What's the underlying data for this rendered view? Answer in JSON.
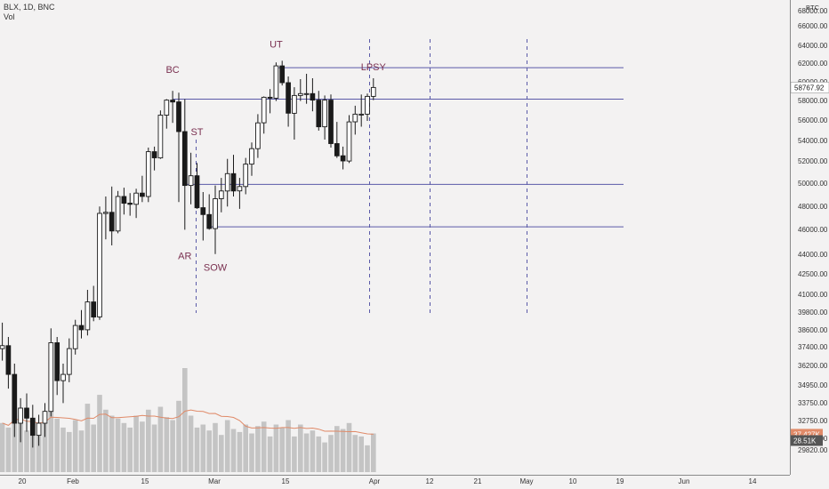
{
  "legend": {
    "symbol": "BLX, 1D, BNC",
    "volume": "Vol"
  },
  "currency_label": "BTC",
  "colors": {
    "background": "#f3f2f2",
    "candle": "#1a1a1a",
    "volume_bar": "#c4c4c4",
    "volume_ma": "#e08a68",
    "level_line": "#5a5aa8",
    "event_line": "#5a5aa8",
    "annotation": "#7a3050",
    "axis_text": "#333333",
    "price_tag": "#1a1a1a",
    "volume_tag": "#555555"
  },
  "chart_data": {
    "type": "candlestick",
    "title": "",
    "x_ticks": [
      "20",
      "Feb",
      "15",
      "Mar",
      "15",
      "Apr",
      "12",
      "21",
      "May",
      "10",
      "19",
      "Jun",
      "14"
    ],
    "y_ticks": [
      "68000.00",
      "66000.00",
      "64000.00",
      "62000.00",
      "60000.00",
      "58000.00",
      "56000.00",
      "54000.00",
      "52000.00",
      "50000.00",
      "48000.00",
      "46000.00",
      "44000.00",
      "42500.00",
      "41000.00",
      "39800.00",
      "38600.00",
      "37400.00",
      "36200.00",
      "34950.00",
      "33750.00",
      "32750.00",
      "31750.00",
      "29820.00"
    ],
    "price_scale": "log",
    "price_range": [
      29820,
      68000
    ],
    "last_price": "58767.92",
    "volume_tags": [
      "37.427K",
      "28.51K"
    ],
    "ohlc": [
      [
        36000,
        37800,
        35200,
        36200
      ],
      [
        36200,
        36800,
        33400,
        34300
      ],
      [
        34300,
        35000,
        30500,
        31300
      ],
      [
        31300,
        32800,
        30200,
        32200
      ],
      [
        32200,
        33100,
        30800,
        31600
      ],
      [
        31600,
        32400,
        29900,
        30600
      ],
      [
        30600,
        31800,
        30000,
        31300
      ],
      [
        31300,
        32500,
        30500,
        32000
      ],
      [
        32000,
        37400,
        31700,
        36400
      ],
      [
        36400,
        36800,
        33000,
        33900
      ],
      [
        33900,
        35000,
        32500,
        34300
      ],
      [
        34300,
        36700,
        33800,
        36000
      ],
      [
        36000,
        38000,
        35600,
        37600
      ],
      [
        37600,
        38700,
        36700,
        37300
      ],
      [
        37300,
        40200,
        36900,
        39300
      ],
      [
        39300,
        40500,
        37900,
        38200
      ],
      [
        38200,
        47000,
        38000,
        46400
      ],
      [
        46400,
        47900,
        44200,
        46500
      ],
      [
        46500,
        48800,
        43700,
        44900
      ],
      [
        44900,
        48400,
        44700,
        47900
      ],
      [
        47900,
        48700,
        46300,
        47300
      ],
      [
        47300,
        48200,
        46200,
        47200
      ],
      [
        47200,
        48600,
        46000,
        48200
      ],
      [
        48200,
        49800,
        47400,
        47900
      ],
      [
        47900,
        52500,
        47400,
        52100
      ],
      [
        52100,
        52600,
        50300,
        51500
      ],
      [
        51500,
        56300,
        51400,
        55800
      ],
      [
        55800,
        57500,
        54400,
        57400
      ],
      [
        57400,
        58400,
        55000,
        57200
      ],
      [
        57200,
        58200,
        47400,
        54100
      ],
      [
        54100,
        57500,
        45000,
        48900
      ],
      [
        48900,
        52000,
        47200,
        49800
      ],
      [
        49800,
        51000,
        46800,
        46900
      ],
      [
        46900,
        48300,
        44100,
        46300
      ],
      [
        46300,
        48100,
        45000,
        45100
      ],
      [
        45100,
        48900,
        43000,
        47700
      ],
      [
        47700,
        49600,
        46500,
        48400
      ],
      [
        48400,
        51400,
        47000,
        50000
      ],
      [
        50000,
        51800,
        47900,
        48400
      ],
      [
        48400,
        49600,
        46800,
        48800
      ],
      [
        48800,
        51500,
        48100,
        50900
      ],
      [
        50900,
        53000,
        49800,
        52400
      ],
      [
        52400,
        55900,
        51500,
        55000
      ],
      [
        55000,
        57800,
        53900,
        57700
      ],
      [
        57700,
        58600,
        56000,
        57600
      ],
      [
        57600,
        61600,
        57300,
        61200
      ],
      [
        61200,
        61800,
        59000,
        59300
      ],
      [
        59300,
        60000,
        54600,
        56000
      ],
      [
        56000,
        58800,
        53300,
        57900
      ],
      [
        57900,
        59700,
        57300,
        58100
      ],
      [
        58100,
        60300,
        57000,
        58100
      ],
      [
        58100,
        59800,
        56200,
        57400
      ],
      [
        57400,
        58400,
        54200,
        54600
      ],
      [
        54600,
        57900,
        53300,
        57400
      ],
      [
        57400,
        58000,
        52500,
        52900
      ],
      [
        52900,
        55100,
        51500,
        51700
      ],
      [
        51700,
        52600,
        50400,
        51200
      ],
      [
        51200,
        55800,
        51000,
        55100
      ],
      [
        55100,
        56800,
        53800,
        55900
      ],
      [
        55900,
        58000,
        54600,
        55900
      ],
      [
        55900,
        58100,
        55200,
        57800
      ],
      [
        57800,
        59800,
        57400,
        58768
      ]
    ],
    "volume": [
      33,
      30,
      42,
      38,
      28,
      33,
      26,
      40,
      62,
      36,
      30,
      27,
      35,
      28,
      46,
      32,
      52,
      42,
      38,
      36,
      33,
      30,
      38,
      34,
      42,
      32,
      44,
      37,
      35,
      48,
      70,
      38,
      30,
      32,
      28,
      33,
      25,
      35,
      29,
      27,
      32,
      26,
      31,
      34,
      24,
      32,
      30,
      35,
      24,
      32,
      26,
      28,
      24,
      20,
      25,
      31,
      29,
      33,
      25,
      24,
      18,
      26
    ],
    "horizontal_levels": [
      61000,
      57500,
      49000,
      45250
    ],
    "event_dates": [
      "22",
      "30",
      "Mar",
      "4",
      "Apr"
    ],
    "annotations": [
      {
        "text": "BC",
        "day": 28,
        "price": 59800,
        "place": "above"
      },
      {
        "text": "AR",
        "day": 30,
        "price": 43500,
        "place": "below"
      },
      {
        "text": "ST",
        "day": 32,
        "price": 53200,
        "place": "above"
      },
      {
        "text": "SOW",
        "day": 35,
        "price": 42600,
        "place": "below"
      },
      {
        "text": "UT",
        "day": 45,
        "price": 62700,
        "place": "above"
      },
      {
        "text": "LPSY",
        "day": 61,
        "price": 60100,
        "place": "above"
      }
    ]
  }
}
